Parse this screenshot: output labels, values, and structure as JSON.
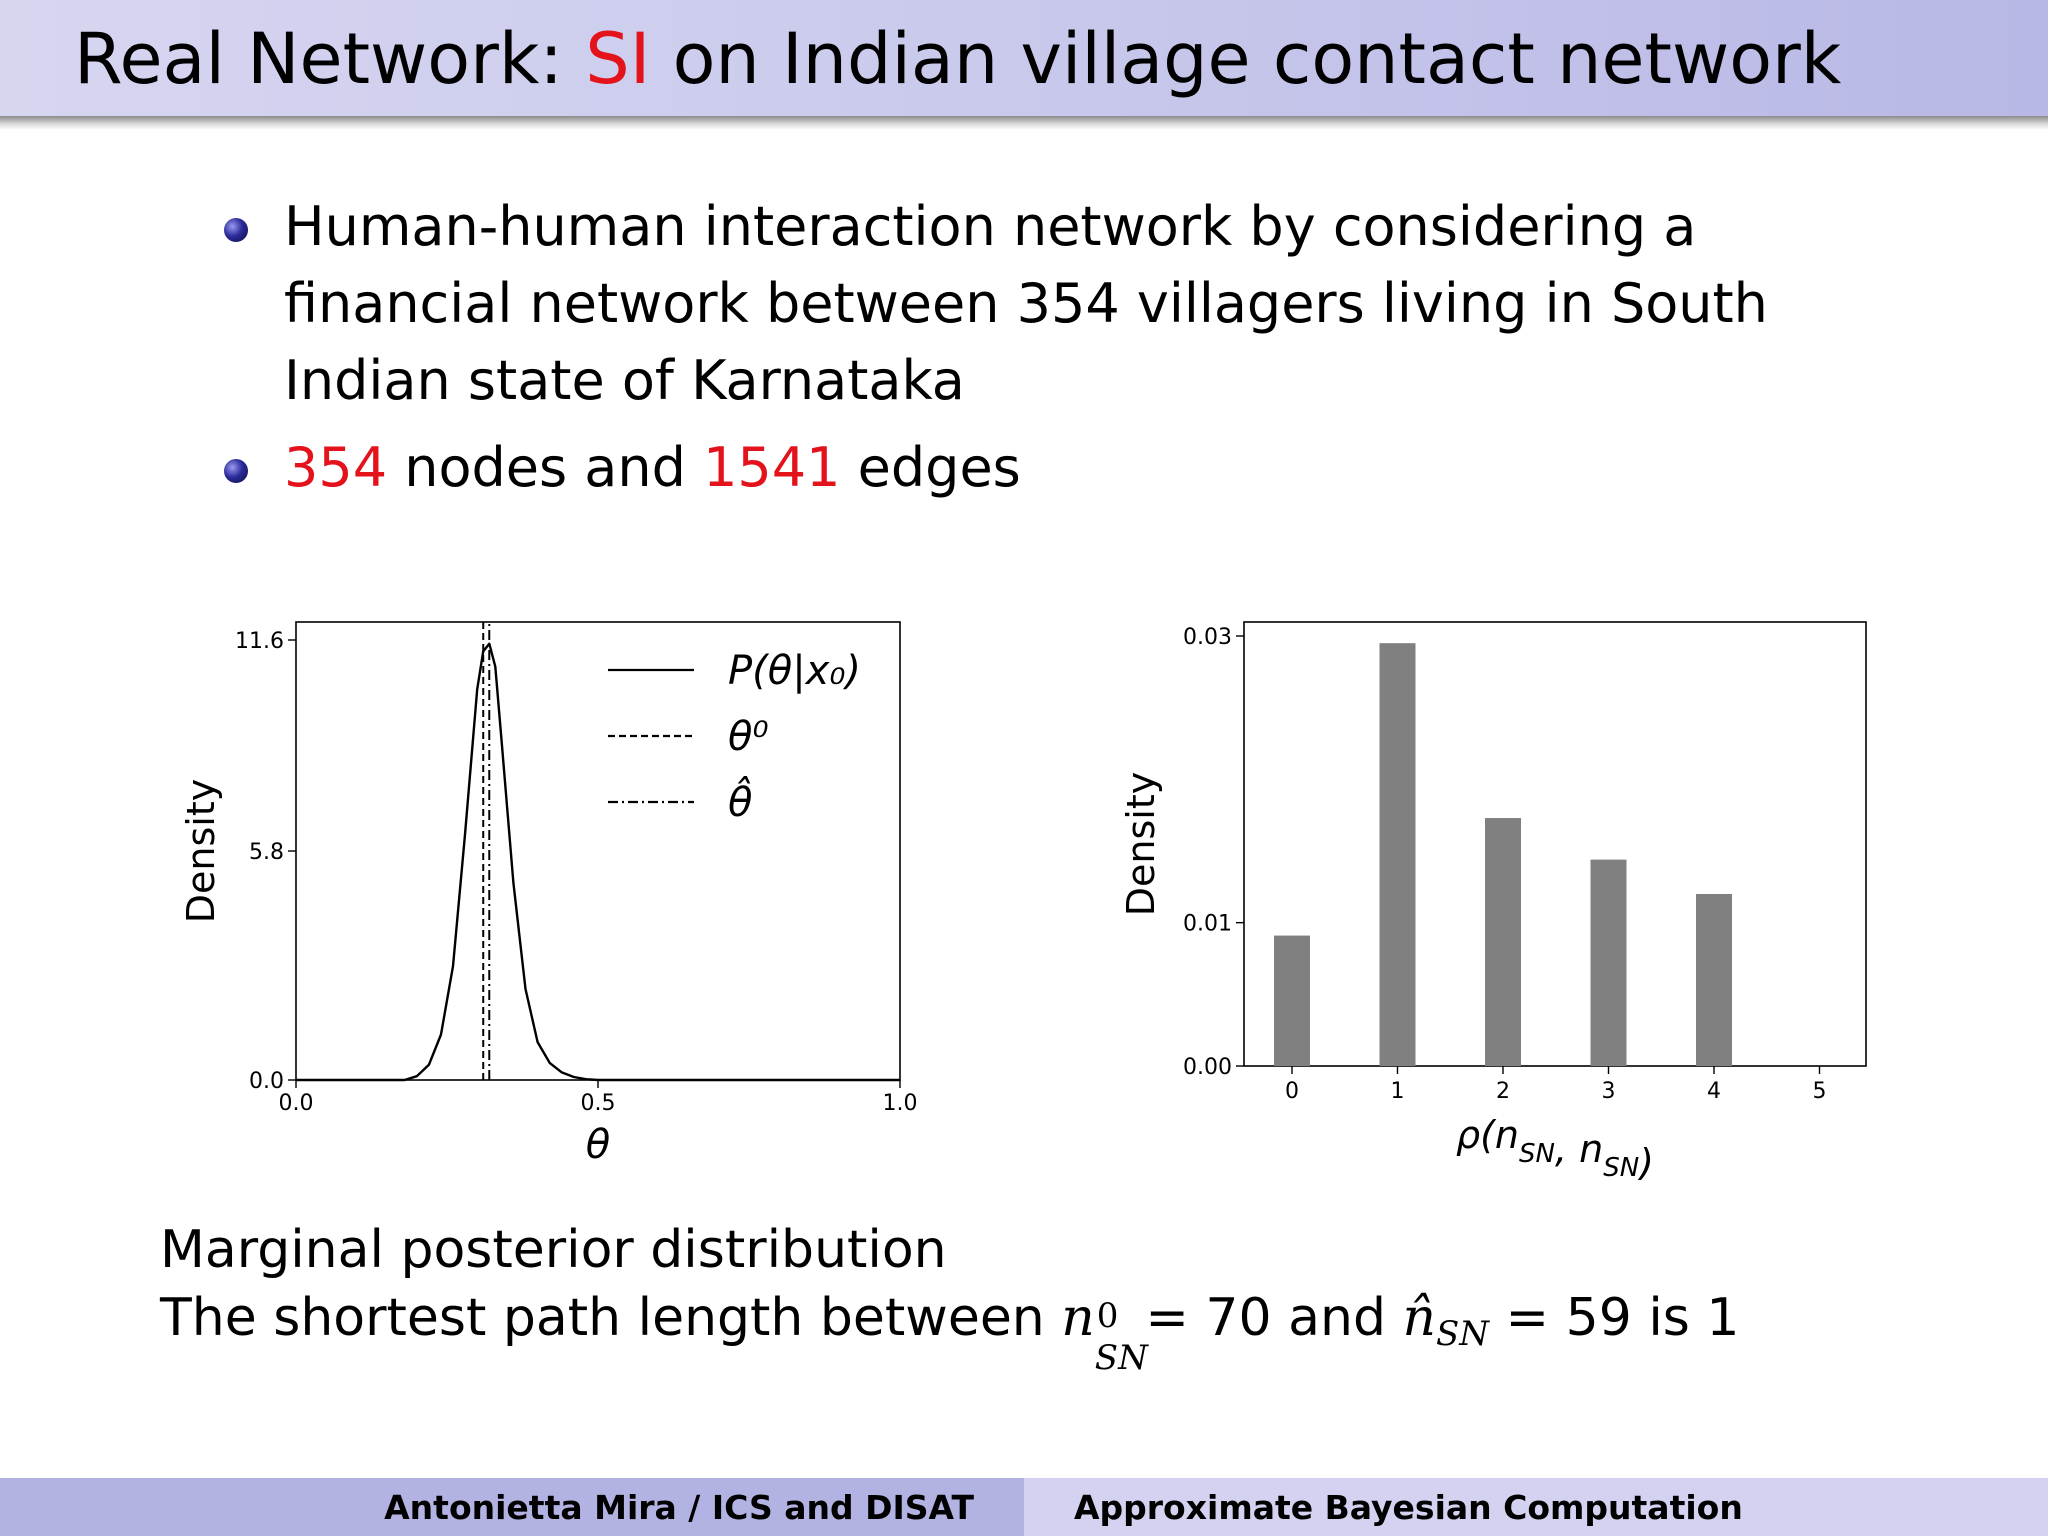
{
  "slide": {
    "title_prefix": "Real Network: ",
    "title_highlight": "SI",
    "title_suffix": " on Indian village contact network",
    "bullets": {
      "b1": "Human-human interaction network by considering a financial network between 354 villagers living in South Indian state of Karnataka",
      "b2_n1": "354",
      "b2_t1": " nodes and ",
      "b2_n2": "1541",
      "b2_t2": " edges"
    },
    "caption": {
      "line1": "Marginal posterior distribution",
      "line2_a": "The shortest path length between ",
      "line2_b": " = 70 and ",
      "line2_c": " = 59 is 1"
    },
    "footer": {
      "left": "Antonietta Mira / ICS and DISAT",
      "right": "Approximate Bayesian Computation"
    },
    "colors": {
      "highlight": "#e3121b",
      "bar": "#808080"
    }
  },
  "chart_data": [
    {
      "type": "line",
      "xlabel": "θ",
      "ylabel": "Density",
      "xlim": [
        0.0,
        1.0
      ],
      "ylim": [
        0.0,
        11.6
      ],
      "xticks": [
        "0.0",
        "0.5",
        "1.0"
      ],
      "yticks": [
        "0.0",
        "5.8",
        "11.6"
      ],
      "legend_placement": "top-right",
      "series": [
        {
          "name": "P(θ|x₀)",
          "style": "solid",
          "x": [
            0.0,
            0.18,
            0.2,
            0.22,
            0.24,
            0.26,
            0.28,
            0.3,
            0.31,
            0.32,
            0.33,
            0.34,
            0.36,
            0.38,
            0.4,
            0.42,
            0.44,
            0.46,
            0.48,
            0.5,
            1.0
          ],
          "y": [
            0.0,
            0.0,
            0.1,
            0.4,
            1.2,
            3.0,
            6.5,
            10.3,
            11.3,
            11.5,
            10.9,
            9.0,
            5.2,
            2.4,
            1.0,
            0.45,
            0.2,
            0.08,
            0.02,
            0.0,
            0.0
          ]
        },
        {
          "name": "θ⁰",
          "style": "dashed",
          "x": [
            0.31,
            0.31
          ],
          "y": [
            0.0,
            11.6
          ]
        },
        {
          "name": "θ̂",
          "style": "dashdot",
          "x": [
            0.32,
            0.32
          ],
          "y": [
            0.0,
            11.6
          ]
        }
      ]
    },
    {
      "type": "bar",
      "xlabel": "ρ(n_SN, n⁰_SN)",
      "ylabel": "Density",
      "categories": [
        "0",
        "1",
        "2",
        "3",
        "4",
        "5"
      ],
      "values": [
        0.0091,
        0.0295,
        0.0173,
        0.0144,
        0.012,
        0.0
      ],
      "ylim": [
        0.0,
        0.03
      ],
      "yticks": [
        "0.00",
        "0.01",
        "0.03"
      ],
      "color": "#808080"
    }
  ]
}
